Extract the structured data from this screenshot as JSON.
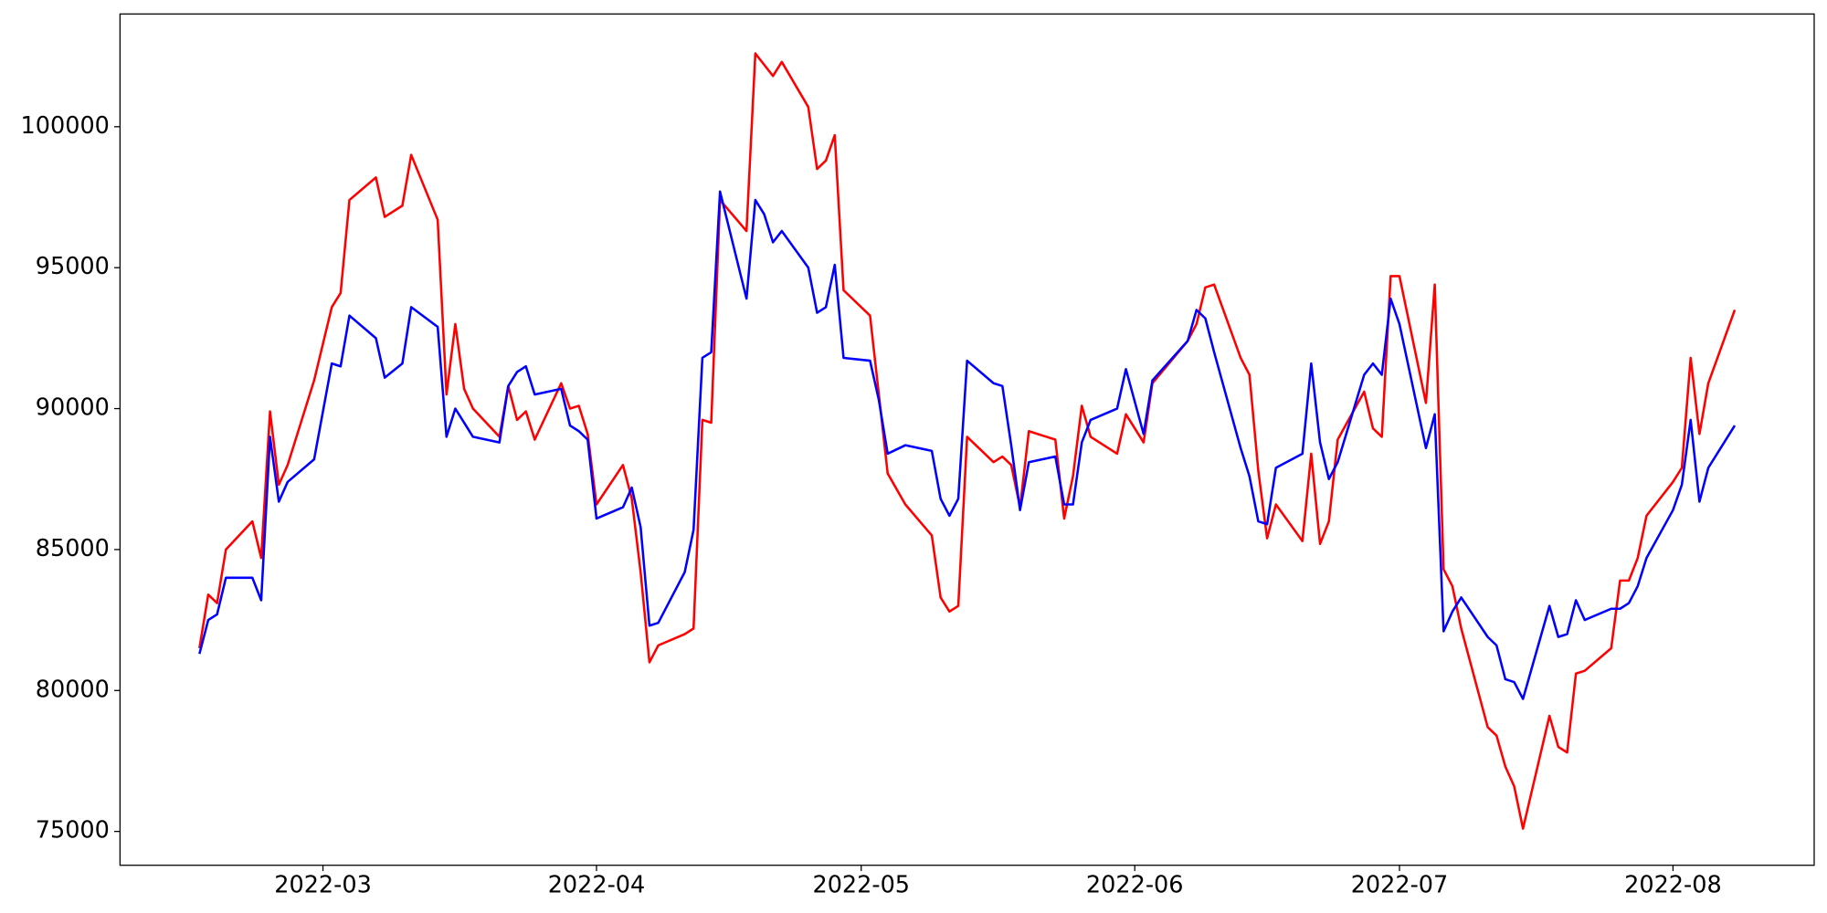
{
  "chart_data": {
    "type": "line",
    "x": [
      "2022-02-15",
      "2022-02-16",
      "2022-02-17",
      "2022-02-18",
      "2022-02-21",
      "2022-02-22",
      "2022-02-23",
      "2022-02-24",
      "2022-02-25",
      "2022-02-28",
      "2022-03-02",
      "2022-03-03",
      "2022-03-04",
      "2022-03-07",
      "2022-03-08",
      "2022-03-10",
      "2022-03-11",
      "2022-03-14",
      "2022-03-15",
      "2022-03-16",
      "2022-03-17",
      "2022-03-18",
      "2022-03-21",
      "2022-03-22",
      "2022-03-23",
      "2022-03-24",
      "2022-03-25",
      "2022-03-28",
      "2022-03-29",
      "2022-03-30",
      "2022-03-31",
      "2022-04-01",
      "2022-04-04",
      "2022-04-05",
      "2022-04-06",
      "2022-04-07",
      "2022-04-08",
      "2022-04-11",
      "2022-04-12",
      "2022-04-13",
      "2022-04-14",
      "2022-04-15",
      "2022-04-18",
      "2022-04-19",
      "2022-04-20",
      "2022-04-21",
      "2022-04-22",
      "2022-04-25",
      "2022-04-26",
      "2022-04-27",
      "2022-04-28",
      "2022-04-29",
      "2022-05-02",
      "2022-05-03",
      "2022-05-04",
      "2022-05-06",
      "2022-05-09",
      "2022-05-10",
      "2022-05-11",
      "2022-05-12",
      "2022-05-13",
      "2022-05-16",
      "2022-05-17",
      "2022-05-18",
      "2022-05-19",
      "2022-05-20",
      "2022-05-23",
      "2022-05-24",
      "2022-05-25",
      "2022-05-26",
      "2022-05-27",
      "2022-05-30",
      "2022-05-31",
      "2022-06-02",
      "2022-06-03",
      "2022-06-07",
      "2022-06-08",
      "2022-06-09",
      "2022-06-10",
      "2022-06-13",
      "2022-06-14",
      "2022-06-15",
      "2022-06-16",
      "2022-06-17",
      "2022-06-20",
      "2022-06-21",
      "2022-06-22",
      "2022-06-23",
      "2022-06-24",
      "2022-06-27",
      "2022-06-28",
      "2022-06-29",
      "2022-06-30",
      "2022-07-01",
      "2022-07-04",
      "2022-07-05",
      "2022-07-06",
      "2022-07-07",
      "2022-07-08",
      "2022-07-11",
      "2022-07-12",
      "2022-07-13",
      "2022-07-14",
      "2022-07-15",
      "2022-07-18",
      "2022-07-19",
      "2022-07-20",
      "2022-07-21",
      "2022-07-22",
      "2022-07-25",
      "2022-07-26",
      "2022-07-27",
      "2022-07-28",
      "2022-07-29",
      "2022-08-01",
      "2022-08-02",
      "2022-08-03",
      "2022-08-04",
      "2022-08-05",
      "2022-08-08"
    ],
    "series": [
      {
        "color": "#ff0000",
        "values": [
          81500,
          83400,
          83100,
          85000,
          86000,
          84700,
          89900,
          87300,
          88000,
          91000,
          93600,
          94100,
          97400,
          98200,
          96800,
          97200,
          99000,
          96700,
          90500,
          93000,
          90700,
          90000,
          89000,
          90800,
          89600,
          89900,
          88900,
          90900,
          90000,
          90100,
          89100,
          86600,
          88000,
          86800,
          84200,
          81000,
          81600,
          82000,
          82200,
          89600,
          89500,
          97400,
          96300,
          102600,
          102200,
          101800,
          102300,
          100700,
          98500,
          98800,
          99700,
          94200,
          93300,
          90500,
          87700,
          86600,
          85500,
          83300,
          82800,
          83000,
          89000,
          88100,
          88300,
          88000,
          86500,
          89200,
          88900,
          86100,
          87600,
          90100,
          89000,
          88400,
          89800,
          88800,
          90900,
          92400,
          93000,
          94300,
          94400,
          91800,
          91200,
          87800,
          85400,
          86600,
          85300,
          88400,
          85200,
          86000,
          88900,
          90600,
          89300,
          89000,
          94700,
          94700,
          90200,
          94400,
          84300,
          83700,
          82200,
          78700,
          78400,
          77300,
          76600,
          75100,
          79100,
          78000,
          77800,
          80600,
          80700,
          81500,
          83900,
          83900,
          84700,
          86200,
          87400,
          87900,
          91800,
          89100,
          90900,
          93500
        ]
      },
      {
        "color": "#0000ff",
        "values": [
          81300,
          82500,
          82700,
          84000,
          84000,
          83200,
          89000,
          86700,
          87400,
          88200,
          91600,
          91500,
          93300,
          92500,
          91100,
          91600,
          93600,
          92900,
          89000,
          90000,
          89500,
          89000,
          88800,
          90800,
          91300,
          91500,
          90500,
          90700,
          89400,
          89200,
          88900,
          86100,
          86500,
          87200,
          85800,
          82300,
          82400,
          84200,
          85700,
          91800,
          92000,
          97700,
          93900,
          97400,
          96900,
          95900,
          96300,
          95000,
          93400,
          93600,
          95100,
          91800,
          91700,
          90300,
          88400,
          88700,
          88500,
          86800,
          86200,
          86800,
          91700,
          90900,
          90800,
          88700,
          86400,
          88100,
          88300,
          86600,
          86600,
          88800,
          89600,
          90000,
          91400,
          89100,
          91000,
          92400,
          93500,
          93200,
          92000,
          88600,
          87600,
          86000,
          85900,
          87900,
          88400,
          91600,
          88800,
          87500,
          88100,
          91200,
          91600,
          91200,
          93900,
          93000,
          88600,
          89800,
          82100,
          82800,
          83300,
          81900,
          81600,
          80400,
          80300,
          79700,
          83000,
          81900,
          82000,
          83200,
          82500,
          82900,
          82900,
          83100,
          83700,
          84700,
          86400,
          87300,
          89600,
          86700,
          87900,
          89400
        ]
      }
    ],
    "xlim": [
      "2022-02-06",
      "2022-08-17"
    ],
    "xticks": [
      "2022-03",
      "2022-04",
      "2022-05",
      "2022-06",
      "2022-07",
      "2022-08"
    ],
    "ylim": [
      73800,
      104000
    ],
    "yticks": [
      75000,
      80000,
      85000,
      90000,
      95000,
      100000
    ],
    "grid": false
  }
}
